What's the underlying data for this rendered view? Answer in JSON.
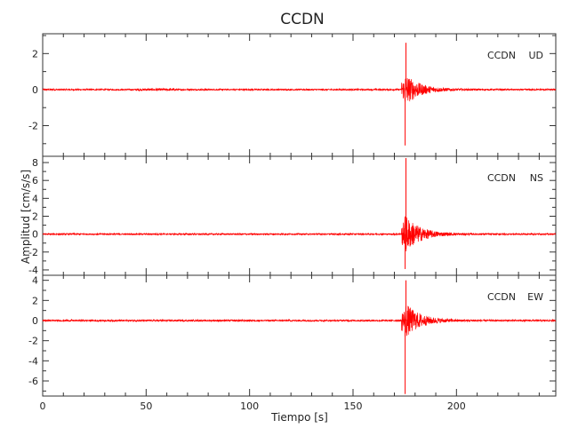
{
  "chart_data": {
    "type": "line",
    "title": "CCDN",
    "xlabel": "Tiempo [s]",
    "ylabel": "Amplitud [cm/s/s]",
    "xlim": [
      0,
      248
    ],
    "xticks": [
      0,
      50,
      100,
      150,
      200
    ],
    "grid": false,
    "line_color": "#ff0000",
    "event_time": 175,
    "panels": [
      {
        "name": "UD",
        "label_station": "CCDN",
        "label_component": "UD",
        "ylim": [
          -3.7,
          3.1
        ],
        "yticks": [
          -2,
          0,
          2
        ],
        "peak_pos": 2.6,
        "peak_neg": -3.1,
        "coda_amp": 0.9,
        "noise": 0.04
      },
      {
        "name": "NS",
        "label_station": "CCDN",
        "label_component": "NS",
        "ylim": [
          -4.6,
          8.7
        ],
        "yticks": [
          -4,
          -2,
          0,
          2,
          4,
          6,
          8
        ],
        "peak_pos": 8.5,
        "peak_neg": -3.9,
        "coda_amp": 2.2,
        "noise": 0.08
      },
      {
        "name": "EW",
        "label_station": "CCDN",
        "label_component": "EW",
        "ylim": [
          -7.5,
          4.5
        ],
        "yticks": [
          -6,
          -4,
          -2,
          0,
          2,
          4
        ],
        "peak_pos": 4.0,
        "peak_neg": -7.3,
        "coda_amp": 1.8,
        "noise": 0.08
      }
    ]
  }
}
